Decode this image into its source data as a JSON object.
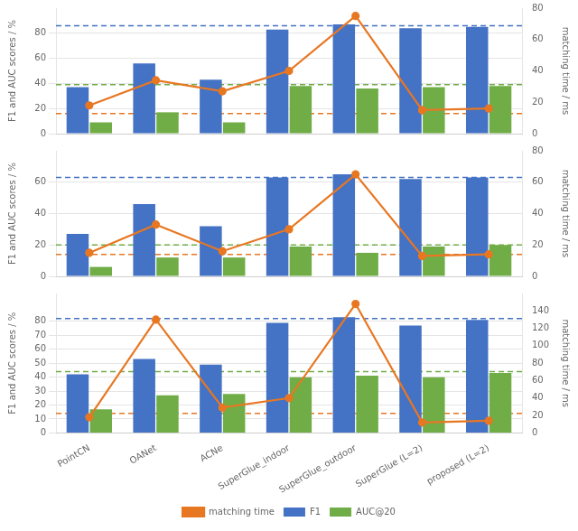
{
  "chart_data": [
    {
      "type": "bar",
      "categories": [
        "PointCN",
        "OANet",
        "ACNe",
        "SuperGlue_indoor",
        "SuperGlue_outdoor",
        "SuperGlue (L=2)",
        "proposed (L=2)"
      ],
      "series": [
        {
          "name": "F1",
          "type": "bar",
          "color": "#4472C4",
          "values": [
            37,
            56,
            43,
            83,
            87,
            84,
            85
          ]
        },
        {
          "name": "AUC@20",
          "type": "bar",
          "color": "#70AD47",
          "values": [
            9,
            17,
            9,
            38,
            36,
            37,
            38
          ]
        },
        {
          "name": "matching time",
          "type": "line",
          "axis": "y2",
          "marker": "circle",
          "color": "#E87722",
          "values": [
            18,
            34,
            27,
            40,
            75,
            15,
            16
          ]
        }
      ],
      "ylabel": "F1 and AUC scores / %",
      "y2label": "matching time / ms",
      "ylim": [
        0,
        100
      ],
      "yticks": [
        0,
        20,
        40,
        60,
        80
      ],
      "y2lim": [
        0,
        80
      ],
      "y2ticks": [
        0,
        20,
        40,
        60,
        80
      ],
      "hlines": [
        {
          "value": 86,
          "color": "#4472C4",
          "line_style": "dashed"
        },
        {
          "value": 39,
          "color": "#70AD47",
          "line_style": "dashed"
        },
        {
          "value": 16,
          "color": "#E87722",
          "line_style": "dashed"
        }
      ],
      "grid": true,
      "tick_labels": "y"
    },
    {
      "type": "bar",
      "categories": [
        "PointCN",
        "OANet",
        "ACNe",
        "SuperGlue_indoor",
        "SuperGlue_outdoor",
        "SuperGlue (L=2)",
        "proposed (L=2)"
      ],
      "series": [
        {
          "name": "F1",
          "type": "bar",
          "color": "#4472C4",
          "values": [
            27,
            46,
            32,
            63,
            65,
            62,
            63
          ]
        },
        {
          "name": "AUC@20",
          "type": "bar",
          "color": "#70AD47",
          "values": [
            6,
            12,
            12,
            19,
            15,
            19,
            20
          ]
        },
        {
          "name": "matching time",
          "type": "line",
          "axis": "y2",
          "marker": "circle",
          "color": "#E87722",
          "values": [
            15,
            33,
            16,
            30,
            65,
            13,
            14
          ]
        }
      ],
      "ylabel": "F1 and AUC scores / %",
      "y2label": "matching time / ms",
      "ylim": [
        0,
        80
      ],
      "yticks": [
        0,
        20,
        40,
        60
      ],
      "y2lim": [
        0,
        80
      ],
      "y2ticks": [
        0,
        20,
        40,
        60,
        80
      ],
      "hlines": [
        {
          "value": 63,
          "color": "#4472C4",
          "line_style": "dashed"
        },
        {
          "value": 20,
          "color": "#70AD47",
          "line_style": "dashed"
        },
        {
          "value": 14,
          "color": "#E87722",
          "line_style": "dashed"
        }
      ],
      "grid": true,
      "tick_labels": "y"
    },
    {
      "type": "bar",
      "categories": [
        "PointCN",
        "OANet",
        "ACNe",
        "SuperGlue_indoor",
        "SuperGlue_outdoor",
        "SuperGlue (L=2)",
        "proposed (L=2)"
      ],
      "series": [
        {
          "name": "F1",
          "type": "bar",
          "color": "#4472C4",
          "values": [
            42,
            53,
            49,
            79,
            83,
            77,
            81
          ]
        },
        {
          "name": "AUC@20",
          "type": "bar",
          "color": "#70AD47",
          "values": [
            17,
            27,
            28,
            40,
            41,
            40,
            43
          ]
        },
        {
          "name": "matching time",
          "type": "line",
          "axis": "y2",
          "marker": "circle",
          "color": "#E87722",
          "values": [
            18,
            130,
            29,
            40,
            148,
            12,
            14
          ]
        }
      ],
      "ylabel": "F1 and AUC scores / %",
      "y2label": "matching time / ms",
      "ylim": [
        0,
        100
      ],
      "yticks": [
        0,
        10,
        20,
        30,
        40,
        50,
        60,
        70,
        80
      ],
      "y2lim": [
        0,
        160
      ],
      "y2ticks": [
        0,
        20,
        40,
        60,
        80,
        100,
        120,
        140
      ],
      "hlines": [
        {
          "value": 82,
          "color": "#4472C4",
          "line_style": "dashed"
        },
        {
          "value": 44,
          "color": "#70AD47",
          "line_style": "dashed"
        },
        {
          "value": 14,
          "color": "#E87722",
          "line_style": "dashed"
        }
      ],
      "grid": true,
      "legend": "bottom"
    }
  ]
}
